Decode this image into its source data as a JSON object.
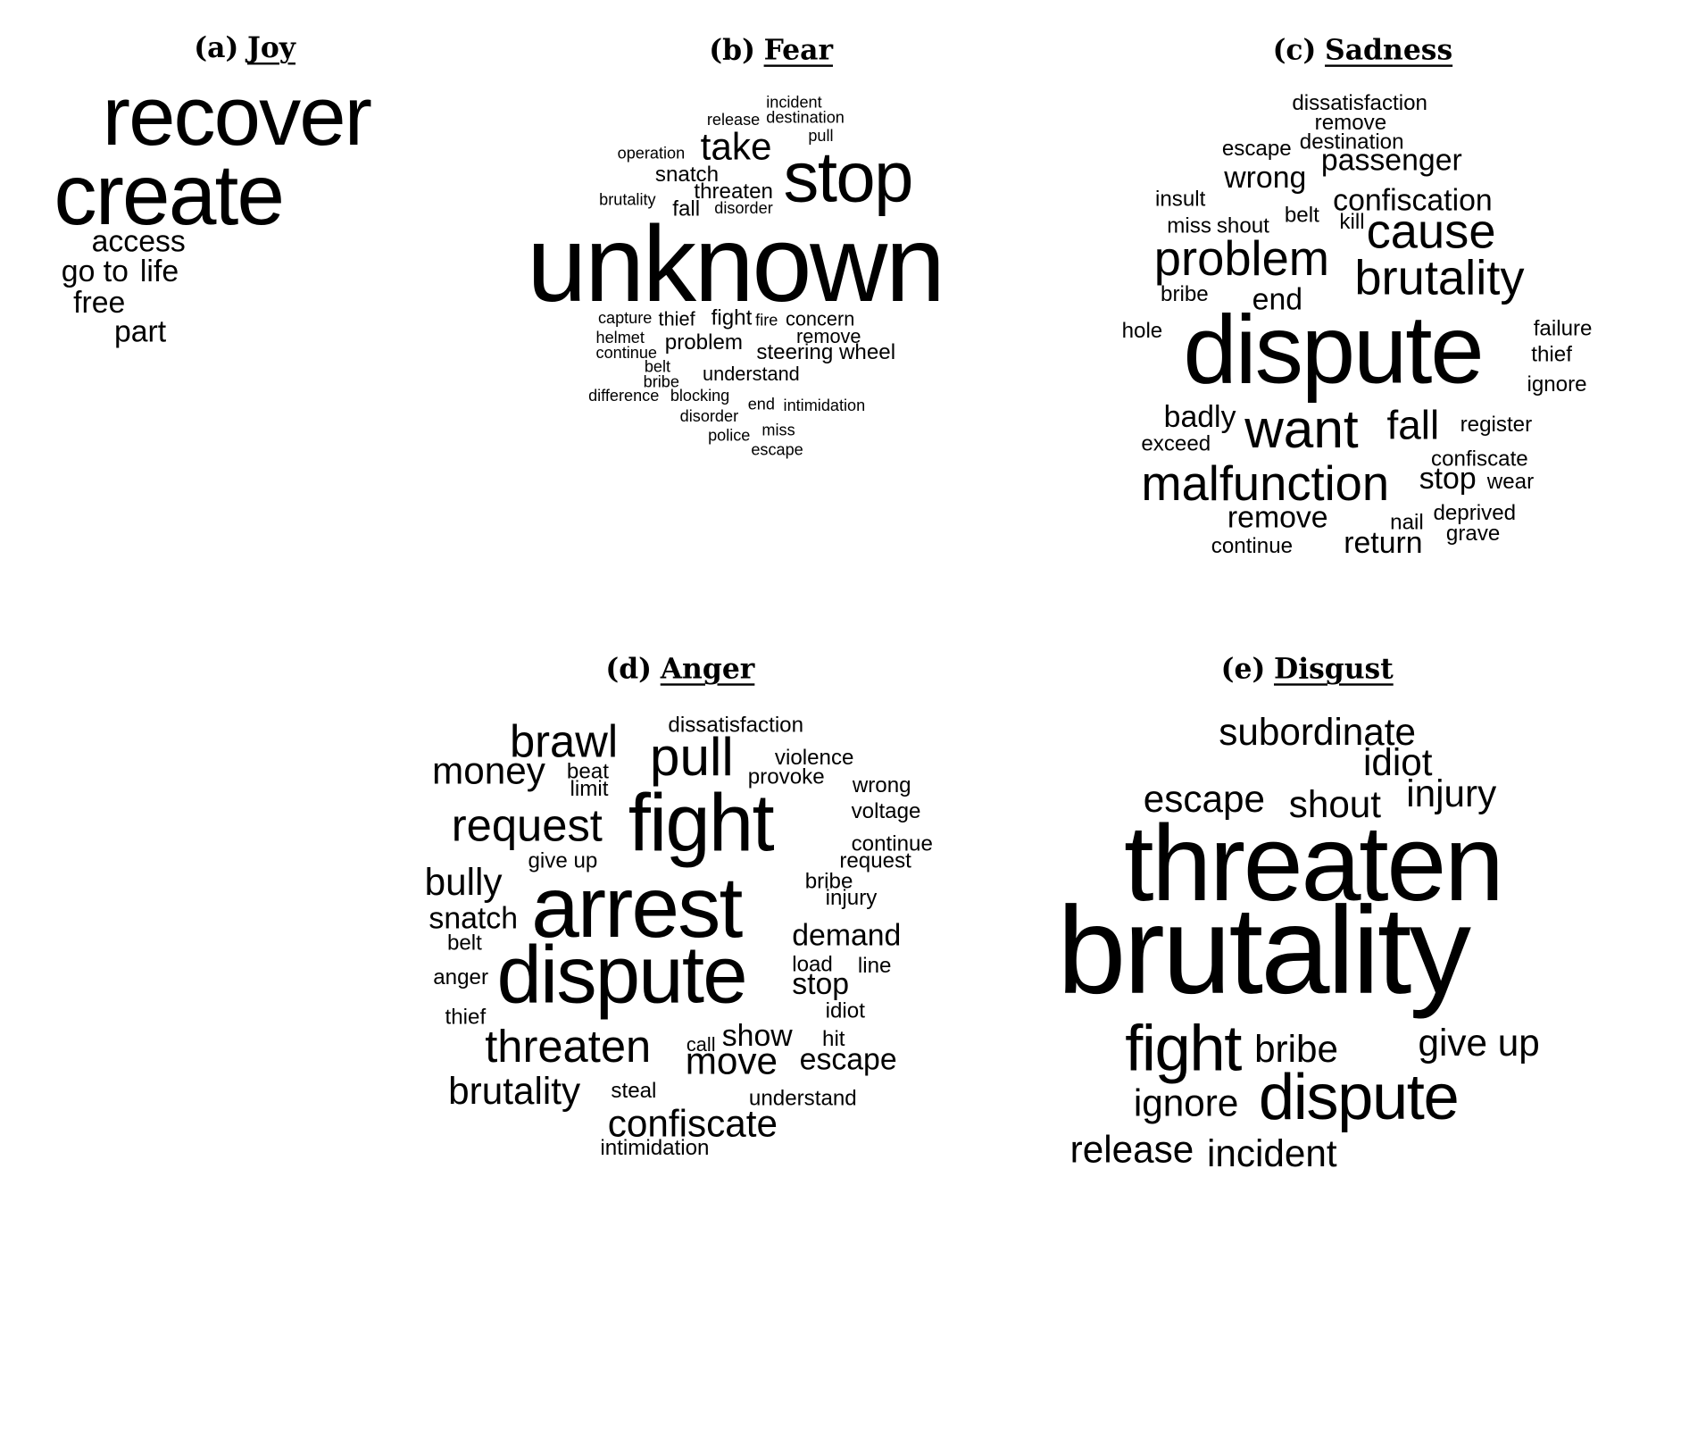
{
  "figure": {
    "panels": [
      {
        "label": "(a)",
        "name": "Joy",
        "words": [
          "recover",
          "create",
          "access",
          "go to",
          "life",
          "free",
          "part"
        ]
      },
      {
        "label": "(b)",
        "name": "Fear",
        "words": [
          "incident",
          "release",
          "destination",
          "pull",
          "operation",
          "take",
          "stop",
          "snatch",
          "threaten",
          "brutality",
          "fall",
          "disorder",
          "unknown",
          "capture",
          "thief",
          "fight",
          "fire",
          "concern",
          "helmet",
          "remove",
          "continue",
          "problem",
          "steering wheel",
          "belt",
          "understand",
          "bribe",
          "difference",
          "blocking",
          "end",
          "intimidation",
          "disorder",
          "miss",
          "police",
          "escape"
        ]
      },
      {
        "label": "(c)",
        "name": "Sadness",
        "words": [
          "dissatisfaction",
          "remove",
          "escape",
          "destination",
          "wrong",
          "passenger",
          "insult",
          "confiscation",
          "belt",
          "kill",
          "miss",
          "shout",
          "cause",
          "problem",
          "brutality",
          "bribe",
          "end",
          "hole",
          "dispute",
          "failure",
          "thief",
          "ignore",
          "badly",
          "want",
          "fall",
          "register",
          "exceed",
          "confiscate",
          "malfunction",
          "stop",
          "wear",
          "deprived",
          "remove",
          "nail",
          "grave",
          "continue",
          "return"
        ]
      },
      {
        "label": "(d)",
        "name": "Anger",
        "words": [
          "dissatisfaction",
          "brawl",
          "pull",
          "violence",
          "money",
          "beat",
          "provoke",
          "wrong",
          "limit",
          "voltage",
          "request",
          "fight",
          "continue",
          "give up",
          "request",
          "bully",
          "bribe",
          "injury",
          "arrest",
          "snatch",
          "demand",
          "belt",
          "load",
          "line",
          "dispute",
          "anger",
          "stop",
          "idiot",
          "thief",
          "show",
          "threaten",
          "call",
          "hit",
          "move",
          "escape",
          "brutality",
          "steal",
          "understand",
          "confiscate",
          "intimidation"
        ]
      },
      {
        "label": "(e)",
        "name": "Disgust",
        "words": [
          "subordinate",
          "idiot",
          "escape",
          "shout",
          "injury",
          "threaten",
          "brutality",
          "fight",
          "bribe",
          "give up",
          "ignore",
          "dispute",
          "release",
          "incident"
        ]
      }
    ]
  }
}
